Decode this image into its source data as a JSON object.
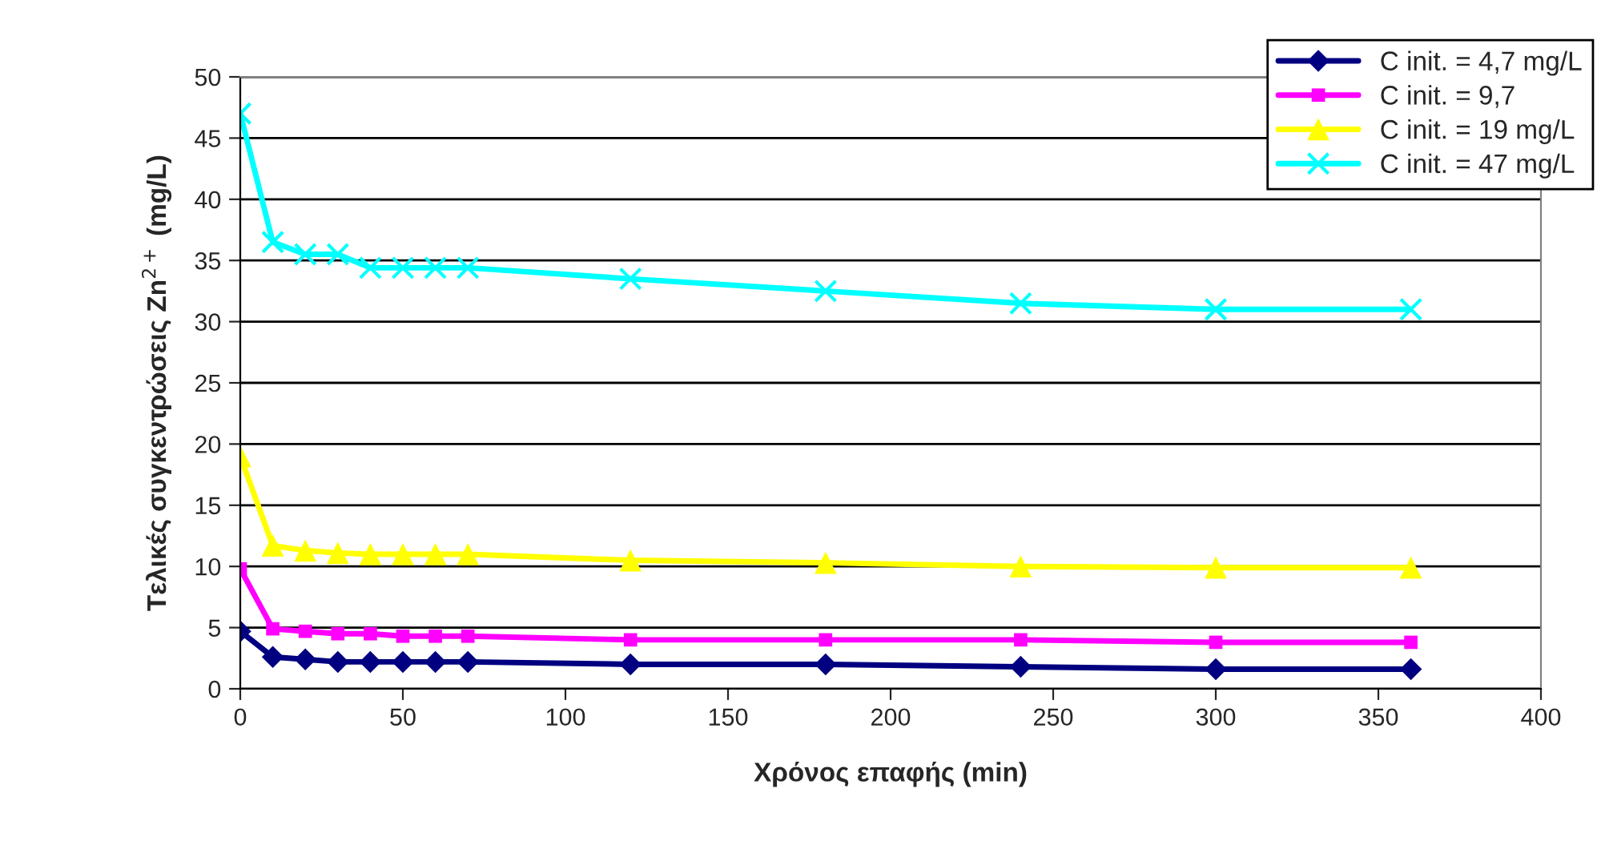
{
  "chart_data": {
    "type": "line",
    "xlabel": "Χρόνος επαφής (min)",
    "ylabel": "Τελικές συγκεντρώσεις Zn$^{2+}$ (mg/L)",
    "x": [
      0,
      10,
      20,
      30,
      40,
      50,
      60,
      70,
      120,
      180,
      240,
      300,
      360
    ],
    "series": [
      {
        "name": "C init. = 4,7 mg/L",
        "color": "#000080",
        "marker": "diamond",
        "values": [
          4.7,
          2.6,
          2.4,
          2.2,
          2.2,
          2.2,
          2.2,
          2.2,
          2.0,
          2.0,
          1.8,
          1.6,
          1.6
        ]
      },
      {
        "name": "C init. = 9,7",
        "color": "#ff00ff",
        "marker": "square",
        "values": [
          9.8,
          4.9,
          4.7,
          4.5,
          4.5,
          4.3,
          4.3,
          4.3,
          4.0,
          4.0,
          4.0,
          3.8,
          3.8
        ]
      },
      {
        "name": "C init. = 19 mg/L",
        "color": "#ffff00",
        "marker": "triangle",
        "values": [
          19,
          11.7,
          11.3,
          11.1,
          11.0,
          11.0,
          11.0,
          11.0,
          10.5,
          10.3,
          10.0,
          9.9,
          9.9
        ]
      },
      {
        "name": "C init. = 47 mg/L",
        "color": "#00ffff",
        "marker": "cross",
        "values": [
          47,
          36.5,
          35.5,
          35.5,
          34.4,
          34.4,
          34.4,
          34.4,
          33.5,
          32.5,
          31.5,
          31.0,
          31.0
        ]
      }
    ],
    "xlim": [
      0,
      400
    ],
    "xticks": [
      0,
      50,
      100,
      150,
      200,
      250,
      300,
      350,
      400
    ],
    "ylim": [
      0,
      50
    ],
    "yticks": [
      0,
      5,
      10,
      15,
      20,
      25,
      30,
      35,
      40,
      45,
      50
    ],
    "grid": "y",
    "legend": "top right",
    "line_style": "solid"
  }
}
